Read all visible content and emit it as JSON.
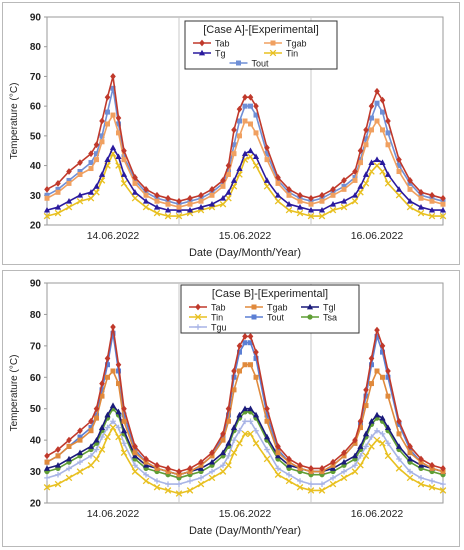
{
  "chart_data": [
    {
      "type": "line",
      "title": "[Case A]-[Experimental]",
      "xlabel": "Date (Day/Month/Year)",
      "ylabel": "Temperature (°C)",
      "ylim": [
        20,
        90
      ],
      "yticks": [
        20,
        30,
        40,
        50,
        60,
        70,
        80,
        90
      ],
      "xlim": [
        0,
        72
      ],
      "xtick_labels": [
        {
          "x": 12,
          "label": "14.06.2022"
        },
        {
          "x": 36,
          "label": "15.06.2022"
        },
        {
          "x": 60,
          "label": "16.06.2022"
        }
      ],
      "day_separators": [
        24,
        48
      ],
      "grid": "vertical day separators",
      "legend_position": "top-center",
      "x": [
        0,
        2,
        4,
        6,
        8,
        9,
        10,
        11,
        12,
        13,
        14,
        16,
        18,
        20,
        22,
        24,
        26,
        28,
        30,
        32,
        33,
        34,
        35,
        36,
        37,
        38,
        40,
        42,
        44,
        46,
        48,
        50,
        52,
        54,
        56,
        57,
        58,
        59,
        60,
        61,
        62,
        64,
        66,
        68,
        70,
        72
      ],
      "series": [
        {
          "name": "Tab",
          "color": "#c0392b",
          "marker": "diamond",
          "values": [
            32,
            34,
            38,
            41,
            44,
            47,
            55,
            63,
            70,
            56,
            45,
            36,
            32,
            30,
            29,
            28,
            29,
            30,
            32,
            35,
            40,
            52,
            59,
            63,
            63,
            60,
            46,
            36,
            32,
            30,
            29,
            30,
            32,
            35,
            38,
            45,
            52,
            60,
            65,
            62,
            55,
            42,
            35,
            31,
            30,
            29
          ]
        },
        {
          "name": "Tgab",
          "color": "#f0a060",
          "marker": "square",
          "values": [
            29,
            31,
            34,
            37,
            39,
            42,
            48,
            54,
            57,
            51,
            42,
            34,
            30,
            28,
            27,
            26,
            27,
            28,
            30,
            33,
            37,
            44,
            50,
            55,
            54,
            51,
            42,
            34,
            30,
            28,
            27,
            28,
            30,
            32,
            35,
            41,
            47,
            52,
            55,
            52,
            47,
            38,
            32,
            29,
            28,
            27
          ]
        },
        {
          "name": "Tg",
          "color": "#2a1a9e",
          "marker": "triangle",
          "values": [
            25,
            26,
            28,
            30,
            31,
            33,
            37,
            42,
            46,
            43,
            37,
            31,
            28,
            26,
            25,
            25,
            25,
            26,
            27,
            29,
            31,
            35,
            39,
            44,
            45,
            43,
            35,
            30,
            27,
            26,
            25,
            25,
            27,
            28,
            30,
            33,
            37,
            41,
            42,
            41,
            37,
            32,
            28,
            26,
            25,
            25
          ]
        },
        {
          "name": "Tin",
          "color": "#e8c020",
          "marker": "x",
          "values": [
            23,
            24,
            26,
            28,
            29,
            31,
            35,
            40,
            44,
            40,
            34,
            29,
            26,
            24,
            23,
            23,
            24,
            25,
            26,
            27,
            29,
            33,
            37,
            42,
            43,
            40,
            33,
            28,
            25,
            24,
            23,
            23,
            25,
            26,
            28,
            31,
            34,
            38,
            40,
            38,
            34,
            30,
            26,
            24,
            23,
            23
          ]
        },
        {
          "name": "Tout",
          "color": "#6f8fd6",
          "marker": "square",
          "values": [
            30,
            32,
            35,
            38,
            41,
            44,
            50,
            58,
            66,
            54,
            43,
            35,
            31,
            29,
            28,
            27,
            28,
            29,
            31,
            34,
            38,
            47,
            55,
            60,
            60,
            57,
            44,
            35,
            31,
            29,
            28,
            29,
            31,
            33,
            36,
            42,
            49,
            56,
            61,
            58,
            51,
            40,
            34,
            30,
            29,
            28
          ]
        }
      ]
    },
    {
      "type": "line",
      "title": "[Case B]-[Experimental]",
      "xlabel": "Date (Day/Month/Year)",
      "ylabel": "Temperature (°C)",
      "ylim": [
        20,
        90
      ],
      "yticks": [
        20,
        30,
        40,
        50,
        60,
        70,
        80,
        90
      ],
      "xlim": [
        0,
        72
      ],
      "xtick_labels": [
        {
          "x": 12,
          "label": "14.06.2022"
        },
        {
          "x": 36,
          "label": "15.06.2022"
        },
        {
          "x": 60,
          "label": "16.06.2022"
        }
      ],
      "day_separators": [
        24,
        48
      ],
      "grid": "vertical day separators",
      "legend_position": "top-center",
      "x": [
        0,
        2,
        4,
        6,
        8,
        9,
        10,
        11,
        12,
        13,
        14,
        16,
        18,
        20,
        22,
        24,
        26,
        28,
        30,
        32,
        33,
        34,
        35,
        36,
        37,
        38,
        40,
        42,
        44,
        46,
        48,
        50,
        52,
        54,
        56,
        57,
        58,
        59,
        60,
        61,
        62,
        64,
        66,
        68,
        70,
        72
      ],
      "series": [
        {
          "name": "Tab",
          "color": "#c0392b",
          "marker": "diamond",
          "values": [
            35,
            37,
            40,
            43,
            46,
            50,
            58,
            66,
            76,
            64,
            50,
            38,
            34,
            32,
            31,
            30,
            31,
            33,
            36,
            42,
            50,
            62,
            70,
            73,
            73,
            68,
            50,
            38,
            34,
            32,
            31,
            31,
            33,
            36,
            40,
            46,
            56,
            66,
            75,
            70,
            62,
            46,
            38,
            34,
            32,
            31
          ]
        },
        {
          "name": "Tgab",
          "color": "#e08a3c",
          "marker": "square",
          "values": [
            33,
            35,
            38,
            40,
            43,
            47,
            54,
            60,
            62,
            58,
            46,
            36,
            33,
            31,
            30,
            29,
            30,
            32,
            35,
            40,
            46,
            56,
            62,
            64,
            64,
            60,
            46,
            36,
            33,
            31,
            30,
            30,
            32,
            35,
            39,
            44,
            51,
            58,
            62,
            60,
            54,
            42,
            36,
            33,
            31,
            30
          ]
        },
        {
          "name": "Tgl",
          "color": "#1a1a7a",
          "marker": "triangle",
          "values": [
            31,
            32,
            34,
            36,
            38,
            40,
            44,
            48,
            51,
            49,
            43,
            35,
            32,
            31,
            30,
            29,
            30,
            31,
            33,
            36,
            39,
            44,
            48,
            50,
            50,
            48,
            41,
            35,
            32,
            31,
            30,
            30,
            31,
            33,
            35,
            38,
            42,
            46,
            48,
            47,
            44,
            38,
            34,
            32,
            31,
            30
          ]
        },
        {
          "name": "Tin",
          "color": "#e8c020",
          "marker": "x",
          "values": [
            25,
            26,
            28,
            30,
            32,
            34,
            37,
            41,
            44,
            41,
            36,
            30,
            27,
            25,
            24,
            23,
            24,
            26,
            28,
            30,
            32,
            36,
            39,
            42,
            42,
            39,
            34,
            29,
            27,
            25,
            24,
            24,
            26,
            28,
            30,
            32,
            35,
            38,
            40,
            39,
            35,
            31,
            28,
            26,
            25,
            24
          ]
        },
        {
          "name": "Tout",
          "color": "#5b7fd4",
          "marker": "square",
          "values": [
            33,
            35,
            38,
            41,
            44,
            48,
            56,
            64,
            74,
            62,
            48,
            37,
            33,
            31,
            30,
            29,
            30,
            32,
            35,
            41,
            48,
            60,
            68,
            71,
            71,
            66,
            48,
            37,
            33,
            31,
            30,
            30,
            32,
            35,
            39,
            45,
            54,
            64,
            73,
            68,
            60,
            45,
            37,
            33,
            31,
            30
          ]
        },
        {
          "name": "Tsa",
          "color": "#5f9e34",
          "marker": "circle",
          "values": [
            30,
            31,
            33,
            35,
            37,
            39,
            43,
            47,
            50,
            48,
            42,
            34,
            31,
            30,
            29,
            28,
            29,
            30,
            32,
            35,
            38,
            43,
            47,
            49,
            49,
            47,
            40,
            34,
            31,
            30,
            29,
            29,
            30,
            32,
            34,
            37,
            41,
            45,
            47,
            46,
            43,
            37,
            33,
            31,
            30,
            29
          ]
        },
        {
          "name": "Tgu",
          "color": "#a8b4e6",
          "marker": "plus",
          "values": [
            28,
            29,
            31,
            33,
            35,
            37,
            41,
            44,
            46,
            44,
            39,
            32,
            29,
            27,
            26,
            26,
            27,
            28,
            30,
            32,
            35,
            40,
            43,
            46,
            46,
            43,
            37,
            31,
            29,
            27,
            26,
            26,
            28,
            30,
            32,
            35,
            38,
            41,
            43,
            42,
            39,
            34,
            30,
            28,
            27,
            26
          ]
        }
      ]
    }
  ]
}
